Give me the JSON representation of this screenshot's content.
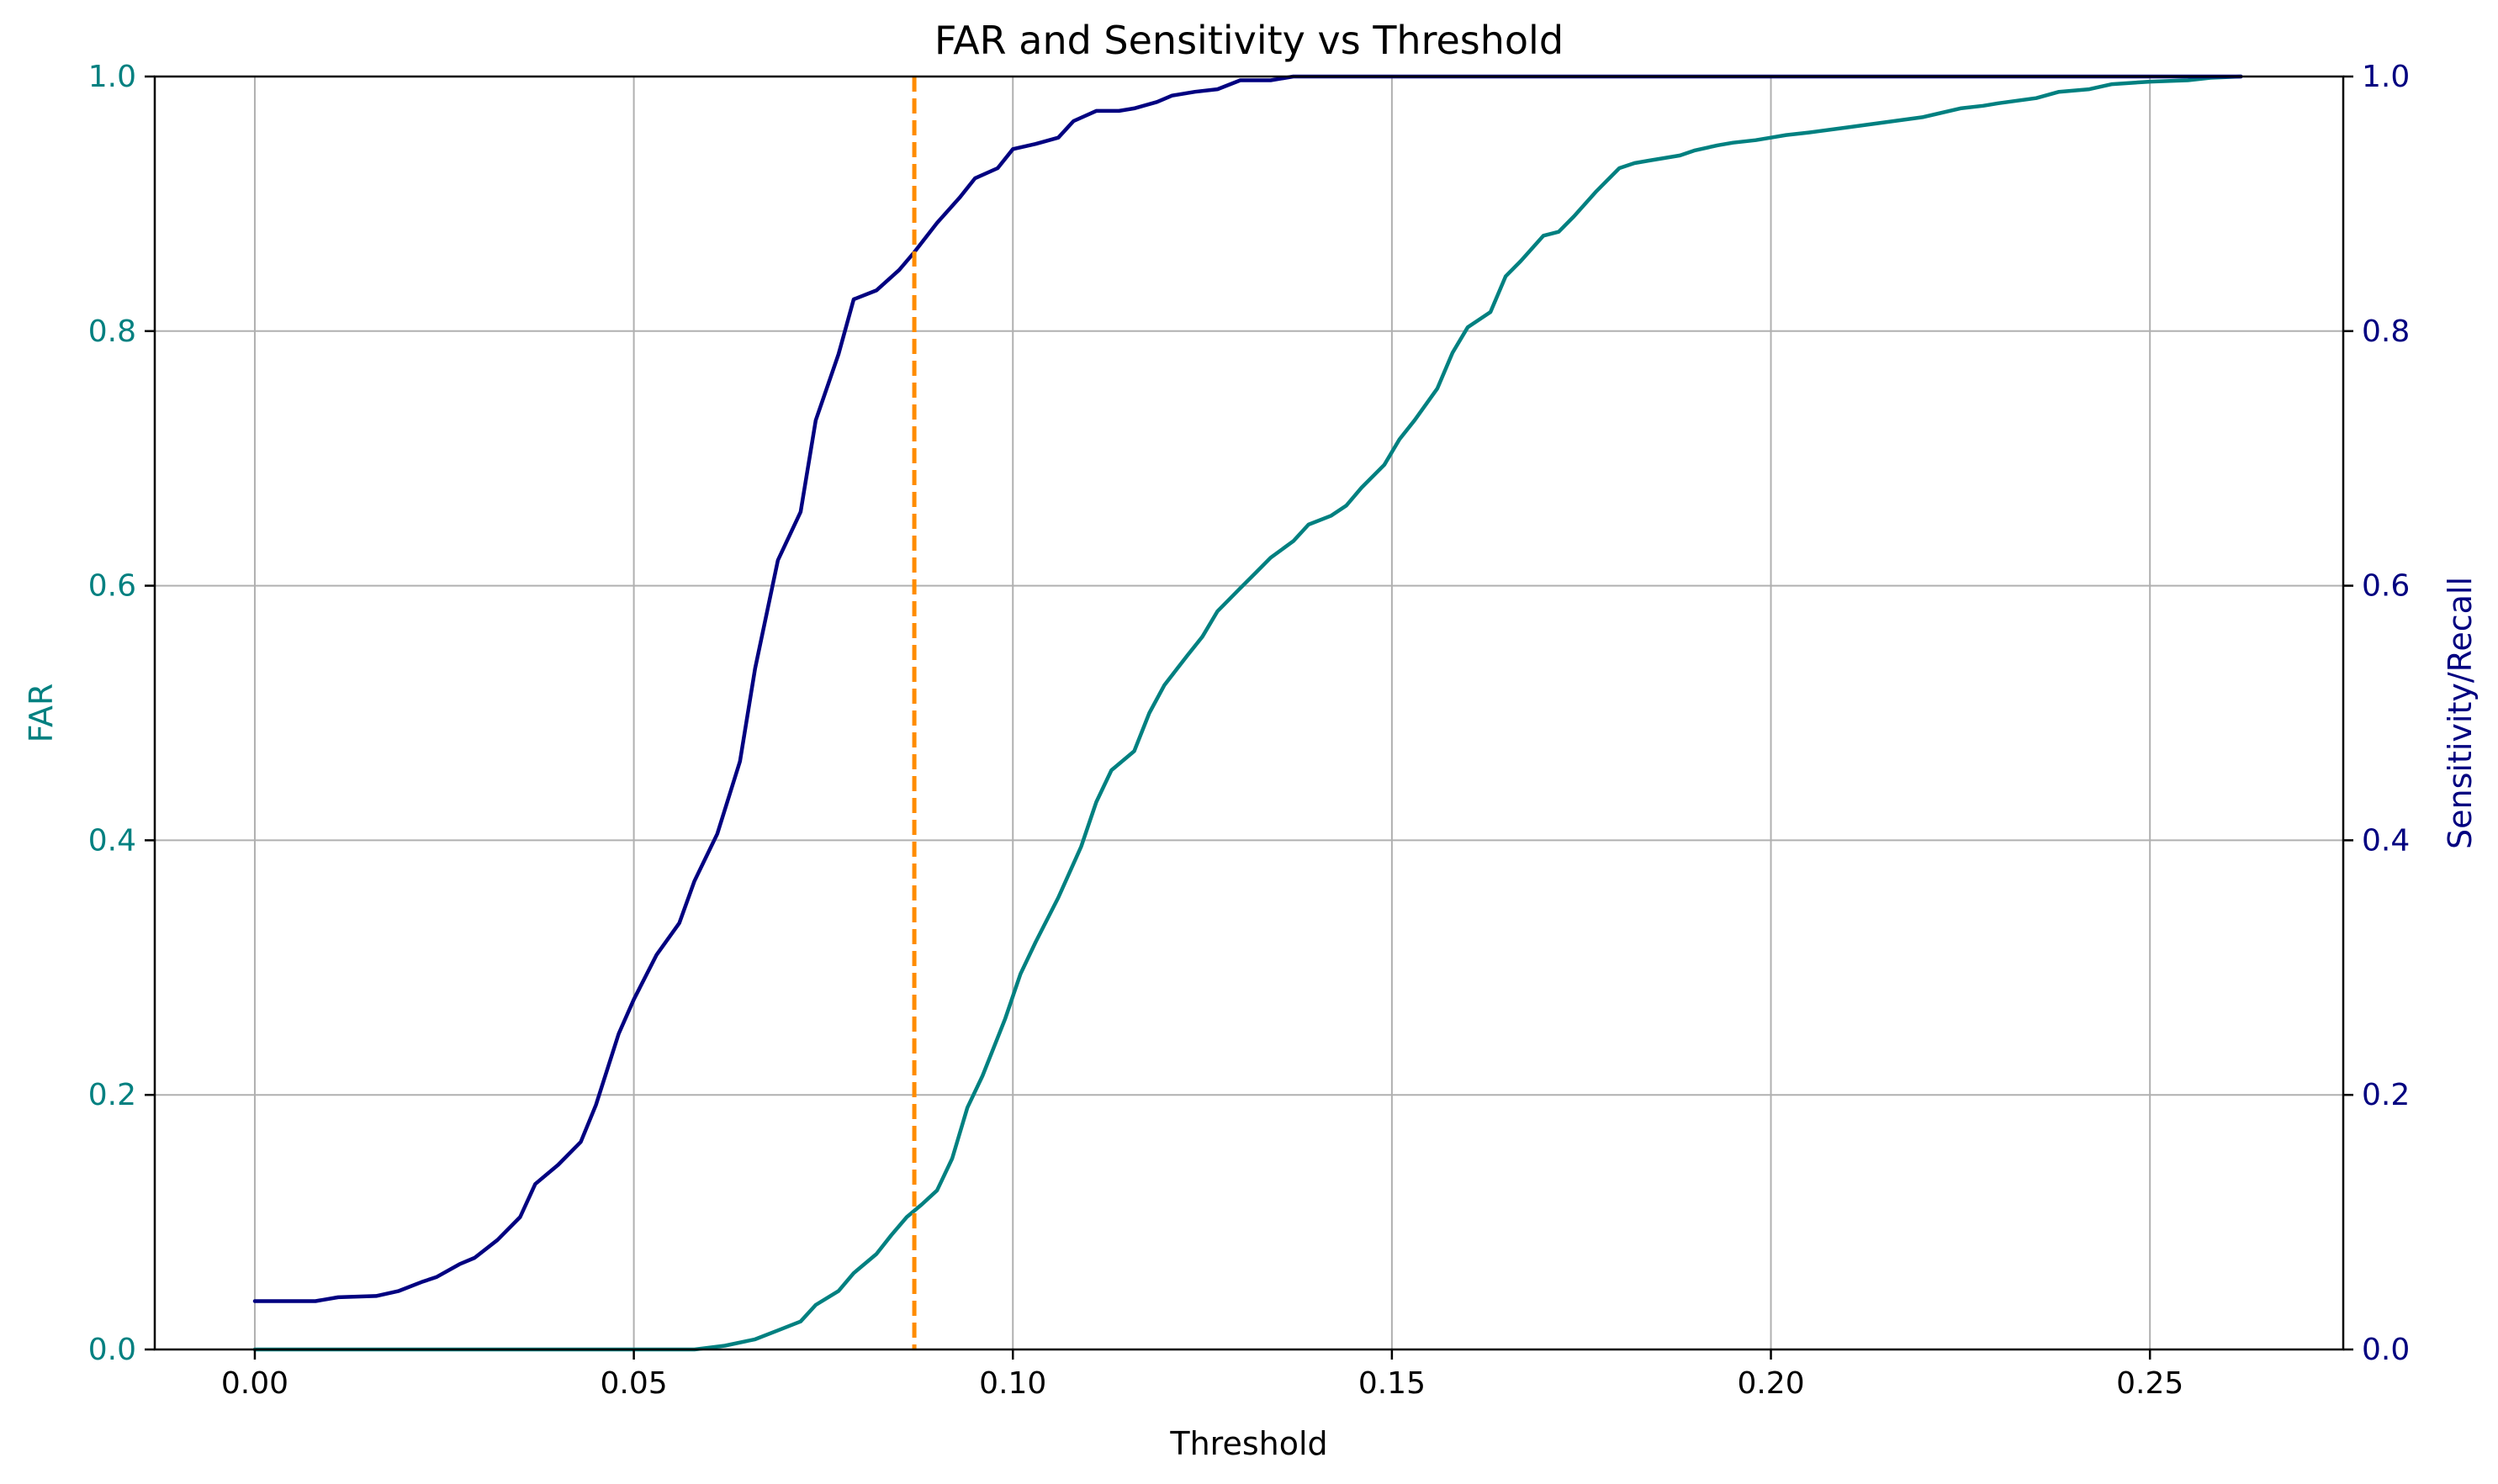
{
  "chart_data": {
    "type": "line",
    "title": "FAR and Sensitivity vs Threshold",
    "xlabel": "Threshold",
    "ylabel_left": "FAR",
    "ylabel_right": "Sensitivity/Recall",
    "xlim": [
      -0.0132,
      0.2755
    ],
    "ylim_left": [
      0.0,
      1.0
    ],
    "ylim_right": [
      0.0,
      1.0
    ],
    "x_ticks": [
      0.0,
      0.05,
      0.1,
      0.15,
      0.2,
      0.25
    ],
    "x_tick_labels": [
      "0.00",
      "0.05",
      "0.10",
      "0.15",
      "0.20",
      "0.25"
    ],
    "y_ticks": [
      0.0,
      0.2,
      0.4,
      0.6,
      0.8,
      1.0
    ],
    "y_tick_labels_left": [
      "0.0",
      "0.2",
      "0.4",
      "0.6",
      "0.8",
      "1.0"
    ],
    "y_tick_labels_right": [
      "0.0",
      "0.2",
      "0.4",
      "0.6",
      "0.8",
      "1.0"
    ],
    "grid": true,
    "colors": {
      "far": "#008080",
      "sensitivity": "#000080",
      "threshold": "#ff8c00",
      "grid": "#b0b0b0",
      "axis": "#000000"
    },
    "threshold_line": {
      "x": 0.087,
      "style": "dashed"
    },
    "series": [
      {
        "axis": "left",
        "color": "#008080",
        "x": [
          0,
          0.04,
          0.058,
          0.062,
          0.066,
          0.069,
          0.072,
          0.074,
          0.077,
          0.079,
          0.082,
          0.084,
          0.086,
          0.088,
          0.09,
          0.092,
          0.094,
          0.096,
          0.099,
          0.101,
          0.103,
          0.106,
          0.109,
          0.111,
          0.113,
          0.116,
          0.118,
          0.12,
          0.123,
          0.125,
          0.127,
          0.13,
          0.132,
          0.134,
          0.137,
          0.139,
          0.142,
          0.144,
          0.146,
          0.149,
          0.151,
          0.153,
          0.156,
          0.158,
          0.16,
          0.163,
          0.165,
          0.167,
          0.17,
          0.172,
          0.174,
          0.177,
          0.18,
          0.182,
          0.184,
          0.186,
          0.188,
          0.19,
          0.193,
          0.195,
          0.198,
          0.2,
          0.202,
          0.205,
          0.21,
          0.215,
          0.22,
          0.225,
          0.228,
          0.23,
          0.235,
          0.238,
          0.242,
          0.245,
          0.25,
          0.255,
          0.258,
          0.262
        ],
        "y": [
          0,
          0,
          0,
          0.003,
          0.008,
          0.015,
          0.022,
          0.035,
          0.046,
          0.06,
          0.075,
          0.09,
          0.104,
          0.114,
          0.125,
          0.15,
          0.19,
          0.215,
          0.26,
          0.295,
          0.32,
          0.355,
          0.395,
          0.43,
          0.455,
          0.47,
          0.5,
          0.522,
          0.545,
          0.56,
          0.58,
          0.598,
          0.61,
          0.622,
          0.635,
          0.648,
          0.655,
          0.663,
          0.677,
          0.695,
          0.715,
          0.73,
          0.755,
          0.783,
          0.803,
          0.815,
          0.843,
          0.855,
          0.875,
          0.878,
          0.89,
          0.91,
          0.928,
          0.932,
          0.934,
          0.936,
          0.938,
          0.942,
          0.946,
          0.948,
          0.95,
          0.952,
          0.954,
          0.956,
          0.96,
          0.964,
          0.968,
          0.975,
          0.977,
          0.979,
          0.983,
          0.988,
          0.99,
          0.994,
          0.996,
          0.997,
          0.999,
          1.0
        ]
      },
      {
        "axis": "right",
        "color": "#000080",
        "x": [
          0,
          0.008,
          0.011,
          0.016,
          0.019,
          0.022,
          0.024,
          0.027,
          0.029,
          0.032,
          0.035,
          0.037,
          0.04,
          0.043,
          0.045,
          0.048,
          0.05,
          0.053,
          0.056,
          0.058,
          0.061,
          0.064,
          0.066,
          0.069,
          0.072,
          0.074,
          0.077,
          0.079,
          0.082,
          0.085,
          0.087,
          0.09,
          0.093,
          0.095,
          0.098,
          0.1,
          0.103,
          0.106,
          0.108,
          0.111,
          0.114,
          0.116,
          0.119,
          0.121,
          0.124,
          0.127,
          0.13,
          0.134,
          0.137,
          0.14,
          0.2,
          0.262
        ],
        "y": [
          0.038,
          0.038,
          0.041,
          0.042,
          0.046,
          0.053,
          0.057,
          0.067,
          0.072,
          0.086,
          0.104,
          0.13,
          0.145,
          0.163,
          0.192,
          0.248,
          0.275,
          0.31,
          0.335,
          0.368,
          0.405,
          0.462,
          0.535,
          0.62,
          0.658,
          0.73,
          0.782,
          0.825,
          0.832,
          0.848,
          0.862,
          0.885,
          0.905,
          0.92,
          0.928,
          0.943,
          0.947,
          0.952,
          0.965,
          0.973,
          0.973,
          0.975,
          0.98,
          0.985,
          0.988,
          0.99,
          0.997,
          0.997,
          1.0,
          1.0,
          1.0,
          1.0
        ]
      }
    ]
  }
}
